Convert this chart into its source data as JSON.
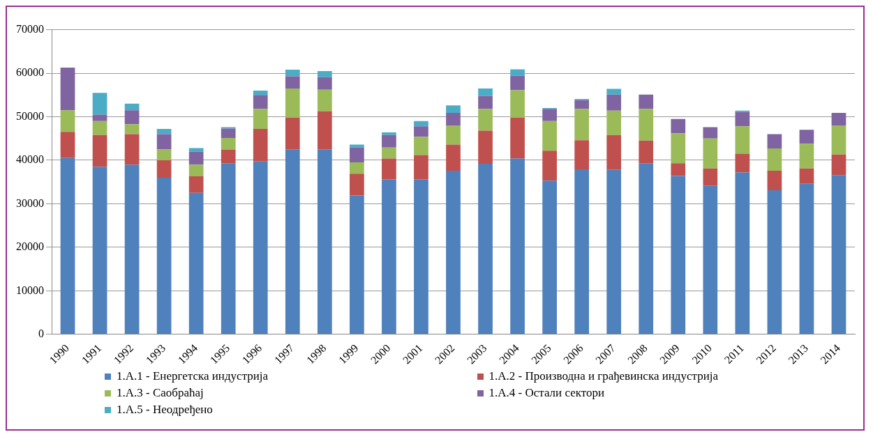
{
  "chart_data": {
    "type": "bar",
    "stacked": true,
    "categories": [
      "1990",
      "1991",
      "1992",
      "1993",
      "1994",
      "1995",
      "1996",
      "1997",
      "1998",
      "1999",
      "2000",
      "2001",
      "2002",
      "2003",
      "2004",
      "2005",
      "2006",
      "2007",
      "2008",
      "2009",
      "2010",
      "2011",
      "2012",
      "2013",
      "2014"
    ],
    "series": [
      {
        "name": "1.A.1 - Енергетска индустрија",
        "color": "#4f81bd",
        "values": [
          40500,
          38500,
          39000,
          36000,
          32500,
          39300,
          39700,
          42500,
          42500,
          31900,
          35600,
          35600,
          37600,
          39200,
          40400,
          35300,
          37900,
          37800,
          39300,
          36400,
          34100,
          37200,
          33100,
          34600,
          36600
        ]
      },
      {
        "name": "1.A.2 - Производна и грађевинска индустрија",
        "color": "#c0504d",
        "values": [
          6000,
          7300,
          7000,
          4000,
          3800,
          3100,
          7500,
          7300,
          8800,
          5000,
          4800,
          5600,
          6000,
          7600,
          9400,
          6900,
          6700,
          8000,
          5200,
          2900,
          4000,
          4300,
          4500,
          3500,
          4700
        ]
      },
      {
        "name": "1.A.3 - Саобраћај",
        "color": "#9bbb59",
        "values": [
          5000,
          3200,
          2300,
          2500,
          2700,
          2700,
          4600,
          6700,
          4900,
          2600,
          2500,
          4200,
          4400,
          5000,
          6300,
          6800,
          7200,
          5600,
          7300,
          6900,
          6900,
          6300,
          5100,
          5700,
          6700
        ]
      },
      {
        "name": "1.A.4 - Остали сектори",
        "color": "#8064a2",
        "values": [
          9800,
          1500,
          3200,
          3500,
          3000,
          2200,
          3200,
          2800,
          2900,
          3400,
          2900,
          2400,
          2900,
          3000,
          3300,
          2800,
          2000,
          3700,
          3300,
          3300,
          2600,
          3300,
          3300,
          3200,
          2900
        ]
      },
      {
        "name": "1.A.5 - Неодређено",
        "color": "#4bacc6",
        "values": [
          0,
          5000,
          1500,
          1200,
          800,
          300,
          1000,
          1500,
          1400,
          700,
          600,
          1200,
          1700,
          1700,
          1500,
          200,
          300,
          1300,
          0,
          0,
          0,
          300,
          0,
          0,
          0
        ]
      }
    ],
    "ylim": [
      0,
      70000
    ],
    "yticks": [
      0,
      10000,
      20000,
      30000,
      40000,
      50000,
      60000,
      70000
    ],
    "grid": "y",
    "legend": "bottom"
  }
}
